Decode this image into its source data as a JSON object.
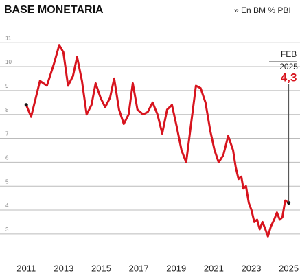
{
  "chart_data": {
    "type": "line",
    "title": "BASE MONETARIA",
    "subtitle": "» En BM % PBI",
    "annotation": [
      "FEB",
      "2025",
      "4,3"
    ],
    "x": [
      2011.0,
      2011.26,
      2011.73,
      2012.1,
      2012.47,
      2012.76,
      2012.98,
      2013.23,
      2013.49,
      2013.71,
      2013.97,
      2014.22,
      2014.48,
      2014.7,
      2014.96,
      2015.21,
      2015.47,
      2015.69,
      2015.95,
      2016.2,
      2016.46,
      2016.68,
      2016.93,
      2017.23,
      2017.48,
      2017.74,
      2018.0,
      2018.25,
      2018.51,
      2018.77,
      2019.02,
      2019.28,
      2019.53,
      2019.79,
      2020.05,
      2020.3,
      2020.56,
      2020.82,
      2021.04,
      2021.26,
      2021.51,
      2021.77,
      2022.03,
      2022.17,
      2022.32,
      2022.47,
      2022.58,
      2022.72,
      2022.87,
      2023.01,
      2023.16,
      2023.31,
      2023.45,
      2023.6,
      2023.75,
      2023.89,
      2024.04,
      2024.22,
      2024.37,
      2024.52,
      2024.66,
      2024.81,
      2025.0
    ],
    "series": [
      {
        "name": "Base monetaria",
        "color": "#d7141e",
        "values": [
          8.4,
          7.9,
          9.4,
          9.2,
          10.1,
          10.9,
          10.6,
          9.2,
          9.6,
          10.4,
          9.4,
          8.0,
          8.4,
          9.3,
          8.7,
          8.3,
          8.7,
          9.5,
          8.2,
          7.6,
          8.0,
          9.3,
          8.2,
          8.0,
          8.1,
          8.5,
          8.0,
          7.2,
          8.2,
          8.4,
          7.5,
          6.5,
          6.0,
          7.6,
          9.2,
          9.1,
          8.5,
          7.3,
          6.5,
          6.0,
          6.3,
          7.1,
          6.5,
          5.8,
          5.3,
          5.4,
          4.9,
          5.0,
          4.3,
          4.0,
          3.5,
          3.6,
          3.2,
          3.5,
          3.2,
          2.9,
          3.3,
          3.6,
          3.9,
          3.6,
          3.7,
          4.4,
          4.3
        ]
      }
    ],
    "xlim": [
      2009.6,
      2025.6
    ],
    "xticks": [
      2011,
      2013,
      2015,
      2017,
      2019,
      2021,
      2023,
      2025
    ],
    "ylim": [
      2.02,
      11.35
    ],
    "yticks": [
      3,
      4,
      5,
      6,
      7,
      8,
      9,
      10,
      11
    ],
    "grid": true
  }
}
